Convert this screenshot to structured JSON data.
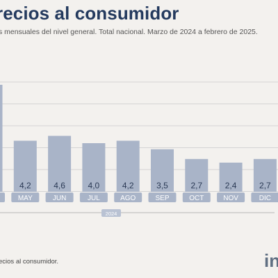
{
  "header": {
    "title": "recios al consumidor",
    "subtitle": "s mensuales del nivel general. Total nacional. Marzo de 2024 a febrero de 2025."
  },
  "footer": {
    "note": "ecios al consumidor.",
    "logo": "in"
  },
  "colors": {
    "bar": "#a9b4c8",
    "bar_dark": "#8e9ab2",
    "month_pill": "#a9b4c8",
    "year_pill": "#b9c2d3",
    "title": "#243a5e",
    "grid": "#d4d4d4"
  },
  "chart_data": {
    "type": "bar",
    "categories": [
      "",
      "MAY",
      "JUN",
      "JUL",
      "AGO",
      "SEP",
      "OCT",
      "NOV",
      "DIC",
      ""
    ],
    "values": [
      8.8,
      4.2,
      4.6,
      4.0,
      4.2,
      3.5,
      2.7,
      2.4,
      2.7,
      2.2
    ],
    "labels": [
      "",
      "4,2",
      "4,6",
      "4,0",
      "4,2",
      "3,5",
      "2,7",
      "2,4",
      "2,7",
      ""
    ],
    "year_label": "2024",
    "ylim": [
      0,
      9
    ],
    "grid": true
  }
}
